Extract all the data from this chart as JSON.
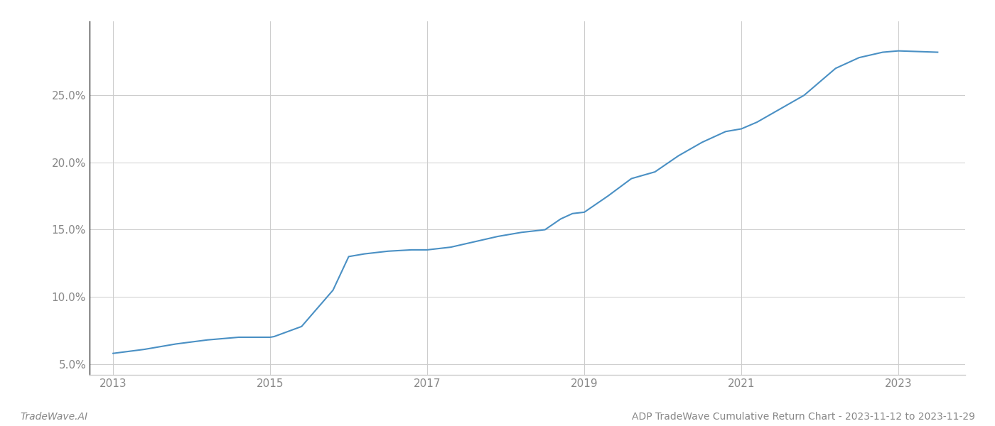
{
  "x_years": [
    2013.0,
    2013.4,
    2013.8,
    2014.2,
    2014.6,
    2015.0,
    2015.05,
    2015.4,
    2015.8,
    2016.0,
    2016.2,
    2016.5,
    2016.8,
    2017.0,
    2017.3,
    2017.6,
    2017.9,
    2018.2,
    2018.5,
    2018.7,
    2018.85,
    2019.0,
    2019.3,
    2019.6,
    2019.9,
    2020.2,
    2020.5,
    2020.8,
    2021.0,
    2021.2,
    2021.5,
    2021.8,
    2022.0,
    2022.2,
    2022.5,
    2022.8,
    2023.0,
    2023.5
  ],
  "y_values": [
    5.8,
    6.1,
    6.5,
    6.8,
    7.0,
    7.0,
    7.05,
    7.8,
    10.5,
    13.0,
    13.2,
    13.4,
    13.5,
    13.5,
    13.7,
    14.1,
    14.5,
    14.8,
    15.0,
    15.8,
    16.2,
    16.3,
    17.5,
    18.8,
    19.3,
    20.5,
    21.5,
    22.3,
    22.5,
    23.0,
    24.0,
    25.0,
    26.0,
    27.0,
    27.8,
    28.2,
    28.3,
    28.2
  ],
  "line_color": "#4a90c4",
  "line_width": 1.5,
  "background_color": "#ffffff",
  "grid_color": "#cccccc",
  "title": "ADP TradeWave Cumulative Return Chart - 2023-11-12 to 2023-11-29",
  "watermark": "TradeWave.AI",
  "ylabel_ticks": [
    5.0,
    10.0,
    15.0,
    20.0,
    25.0
  ],
  "ytick_labels": [
    "5.0%",
    "10.0%",
    "15.0%",
    "20.0%",
    "25.0%"
  ],
  "xlim": [
    2012.7,
    2023.85
  ],
  "ylim": [
    4.2,
    30.5
  ],
  "xtick_positions": [
    2013,
    2015,
    2017,
    2019,
    2021,
    2023
  ],
  "xtick_labels": [
    "2013",
    "2015",
    "2017",
    "2019",
    "2021",
    "2023"
  ],
  "tick_color": "#aaaaaa",
  "axis_label_color": "#888888",
  "spine_color": "#cccccc",
  "left_spine_color": "#333333",
  "title_fontsize": 10,
  "watermark_fontsize": 10,
  "tick_fontsize": 11
}
